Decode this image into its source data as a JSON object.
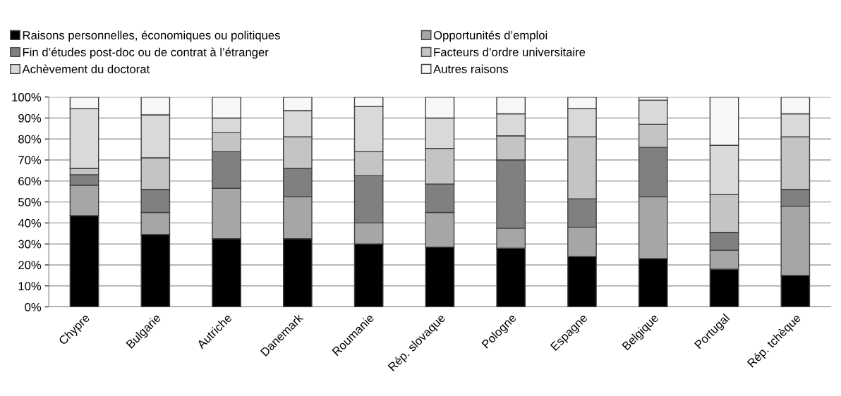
{
  "chart_data": {
    "type": "bar",
    "stacked": true,
    "legend": "top",
    "grid": "y",
    "categories": [
      "Chypre",
      "Bulgarie",
      "Autriche",
      "Danemark",
      "Roumanie",
      "Rép. slovaque",
      "Pologne",
      "Espagne",
      "Belgique",
      "Portugal",
      "Rép. tchèque"
    ],
    "ylim": [
      0,
      100
    ],
    "yticks": [
      {
        "value": 0,
        "label": "0%"
      },
      {
        "value": 10,
        "label": "10%"
      },
      {
        "value": 20,
        "label": "20%"
      },
      {
        "value": 30,
        "label": "30%"
      },
      {
        "value": 40,
        "label": "40%"
      },
      {
        "value": 50,
        "label": "50%"
      },
      {
        "value": 60,
        "label": "60%"
      },
      {
        "value": 70,
        "label": "70%"
      },
      {
        "value": 80,
        "label": "80%"
      },
      {
        "value": 90,
        "label": "90%"
      },
      {
        "value": 100,
        "label": "100%"
      }
    ],
    "series": [
      {
        "name": "Raisons personnelles, économiques ou politiques",
        "color": "#000000",
        "values": [
          43.5,
          34.5,
          32.5,
          32.5,
          30,
          28.5,
          28,
          24,
          23,
          18,
          15
        ]
      },
      {
        "name": "Opportunités d’emploi",
        "color": "#a6a6a6",
        "values": [
          14.5,
          10.5,
          24,
          20,
          10,
          16.5,
          9.5,
          14,
          29.5,
          9,
          33
        ]
      },
      {
        "name": "Fin d’études post-doc ou de contrat à l’étranger",
        "color": "#808080",
        "values": [
          5,
          11,
          17.5,
          13.5,
          22.5,
          13.5,
          32.5,
          13.5,
          23.5,
          8.5,
          8
        ]
      },
      {
        "name": "Facteurs d’ordre universitaire",
        "color": "#c4c4c4",
        "values": [
          3,
          15,
          9,
          15,
          11.5,
          17,
          11.5,
          29.5,
          11,
          18,
          25
        ]
      },
      {
        "name": "Achèvement du doctorat",
        "color": "#d9d9d9",
        "values": [
          28.5,
          20.5,
          7,
          12.5,
          21.5,
          14.5,
          10.5,
          13.5,
          11.5,
          23.5,
          11
        ]
      },
      {
        "name": "Autres raisons",
        "color": "#f7f7f7",
        "values": [
          5.5,
          8.5,
          10,
          6.5,
          4.5,
          10,
          8,
          5.5,
          1.5,
          23,
          8
        ]
      }
    ]
  }
}
